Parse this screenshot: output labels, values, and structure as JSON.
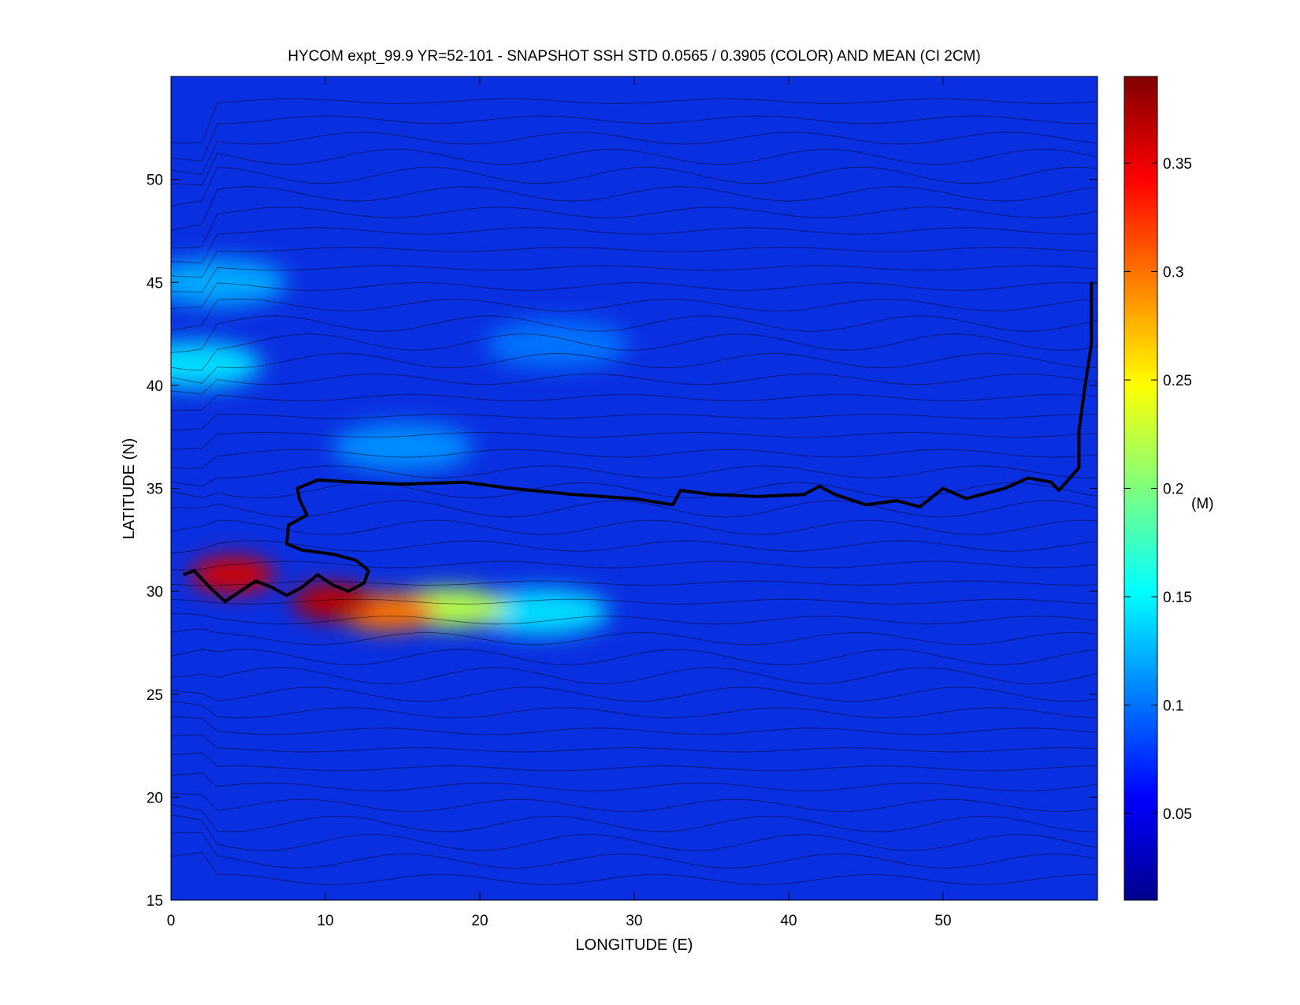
{
  "chart_data": {
    "type": "heatmap",
    "title": "HYCOM expt_99.9 YR=52-101 - SNAPSHOT SSH STD 0.0565 / 0.3905 (COLOR) AND MEAN (CI 2CM)",
    "xlabel": "LONGITUDE (E)",
    "ylabel": "LATITUDE (N)",
    "xlim": [
      0,
      60
    ],
    "ylim": [
      15,
      55
    ],
    "xticks": [
      0,
      10,
      20,
      30,
      40,
      50
    ],
    "yticks": [
      15,
      20,
      25,
      30,
      35,
      40,
      45,
      50
    ],
    "colorbar": {
      "label": "(M)",
      "range": [
        0.01,
        0.39
      ],
      "ticks": [
        0.05,
        0.1,
        0.15,
        0.2,
        0.25,
        0.3,
        0.35
      ],
      "colormap": "jet"
    },
    "std_stats": {
      "mean": 0.0565,
      "max": 0.3905
    },
    "contour_interval_m": 0.02,
    "high_variability_zones": [
      {
        "lon": 4,
        "lat": 30.8,
        "std": 0.36
      },
      {
        "lon": 10.5,
        "lat": 29.5,
        "std": 0.37
      },
      {
        "lon": 14,
        "lat": 29.0,
        "std": 0.3
      },
      {
        "lon": 18,
        "lat": 29.2,
        "std": 0.22
      },
      {
        "lon": 24,
        "lat": 29.0,
        "std": 0.14
      },
      {
        "lon": 1.5,
        "lat": 41,
        "std": 0.14
      },
      {
        "lon": 3,
        "lat": 45,
        "std": 0.12
      },
      {
        "lon": 15,
        "lat": 37,
        "std": 0.11
      },
      {
        "lon": 25,
        "lat": 42,
        "std": 0.1
      }
    ],
    "zero_contour": [
      [
        0.8,
        30.8
      ],
      [
        1.5,
        31.0
      ],
      [
        2.5,
        30.2
      ],
      [
        3.5,
        29.5
      ],
      [
        4.5,
        30.0
      ],
      [
        5.5,
        30.5
      ],
      [
        6.5,
        30.2
      ],
      [
        7.5,
        29.8
      ],
      [
        8.5,
        30.2
      ],
      [
        9.5,
        30.8
      ],
      [
        10.5,
        30.3
      ],
      [
        11.5,
        30.0
      ],
      [
        12.5,
        30.4
      ],
      [
        12.8,
        31.0
      ],
      [
        12.0,
        31.5
      ],
      [
        10.5,
        31.8
      ],
      [
        8.5,
        32.0
      ],
      [
        7.5,
        32.3
      ],
      [
        7.6,
        33.2
      ],
      [
        8.8,
        33.7
      ],
      [
        8.3,
        34.5
      ],
      [
        8.2,
        35.0
      ],
      [
        9.5,
        35.4
      ],
      [
        12.0,
        35.3
      ],
      [
        15.0,
        35.2
      ],
      [
        19.0,
        35.3
      ],
      [
        22.0,
        35.0
      ],
      [
        26.0,
        34.7
      ],
      [
        30.0,
        34.5
      ],
      [
        32.5,
        34.2
      ],
      [
        33.0,
        34.9
      ],
      [
        35.0,
        34.7
      ],
      [
        38.0,
        34.6
      ],
      [
        41.0,
        34.7
      ],
      [
        42.0,
        35.1
      ],
      [
        43.0,
        34.7
      ],
      [
        45.0,
        34.2
      ],
      [
        47.0,
        34.4
      ],
      [
        48.5,
        34.1
      ],
      [
        50.0,
        35.0
      ],
      [
        51.5,
        34.5
      ],
      [
        54.0,
        35.0
      ],
      [
        55.5,
        35.5
      ],
      [
        57.0,
        35.3
      ],
      [
        57.5,
        34.9
      ],
      [
        58.8,
        36.0
      ],
      [
        58.8,
        37.8
      ],
      [
        59.2,
        40.0
      ],
      [
        59.6,
        42.0
      ],
      [
        59.6,
        45.0
      ]
    ]
  }
}
